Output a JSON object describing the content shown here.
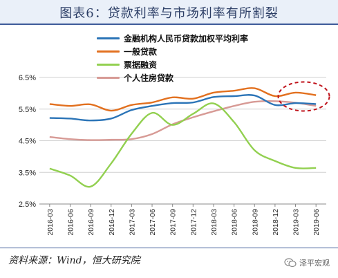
{
  "header": {
    "title": "图表6：贷款利率与市场利率有所割裂"
  },
  "chart_data": {
    "type": "line",
    "categories": [
      "2016-03",
      "2016-06",
      "2016-09",
      "2016-12",
      "2017-03",
      "2017-06",
      "2017-09",
      "2017-12",
      "2018-03",
      "2018-06",
      "2018-09",
      "2018-12",
      "2019-03",
      "2019-06"
    ],
    "ylim": [
      2.5,
      6.5
    ],
    "yticks": [
      "2.5%",
      "3.5%",
      "4.5%",
      "5.5%",
      "6.5%"
    ],
    "ytick_values": [
      2.5,
      3.5,
      4.5,
      5.5,
      6.5
    ],
    "grid": "horizontal",
    "legend_position": "top-center",
    "series": [
      {
        "name": "金融机构人民币贷款加权平均利率",
        "color": "#2b74b7",
        "values": [
          5.22,
          5.2,
          5.14,
          5.2,
          5.47,
          5.6,
          5.69,
          5.71,
          5.88,
          5.91,
          5.93,
          5.63,
          5.69,
          5.66
        ]
      },
      {
        "name": "一般贷款",
        "color": "#e2701f",
        "values": [
          5.66,
          5.6,
          5.65,
          5.45,
          5.63,
          5.71,
          5.87,
          5.83,
          6.02,
          6.08,
          6.16,
          5.91,
          6.02,
          5.94
        ]
      },
      {
        "name": "票据融资",
        "color": "#92d050",
        "values": [
          3.62,
          3.4,
          3.05,
          3.78,
          4.72,
          5.38,
          5.0,
          5.35,
          5.68,
          5.09,
          4.2,
          3.86,
          3.64,
          3.64
        ]
      },
      {
        "name": "个人住房贷款",
        "color": "#d79a95",
        "values": [
          4.62,
          4.55,
          4.52,
          4.53,
          4.55,
          4.71,
          5.02,
          5.24,
          5.43,
          5.6,
          5.73,
          5.75,
          5.7,
          5.6
        ]
      }
    ],
    "annotation": "dashed-red-ellipse"
  },
  "footer": {
    "source": "资料来源：Wind，恒大研究院",
    "watermark": "泽平宏观"
  }
}
